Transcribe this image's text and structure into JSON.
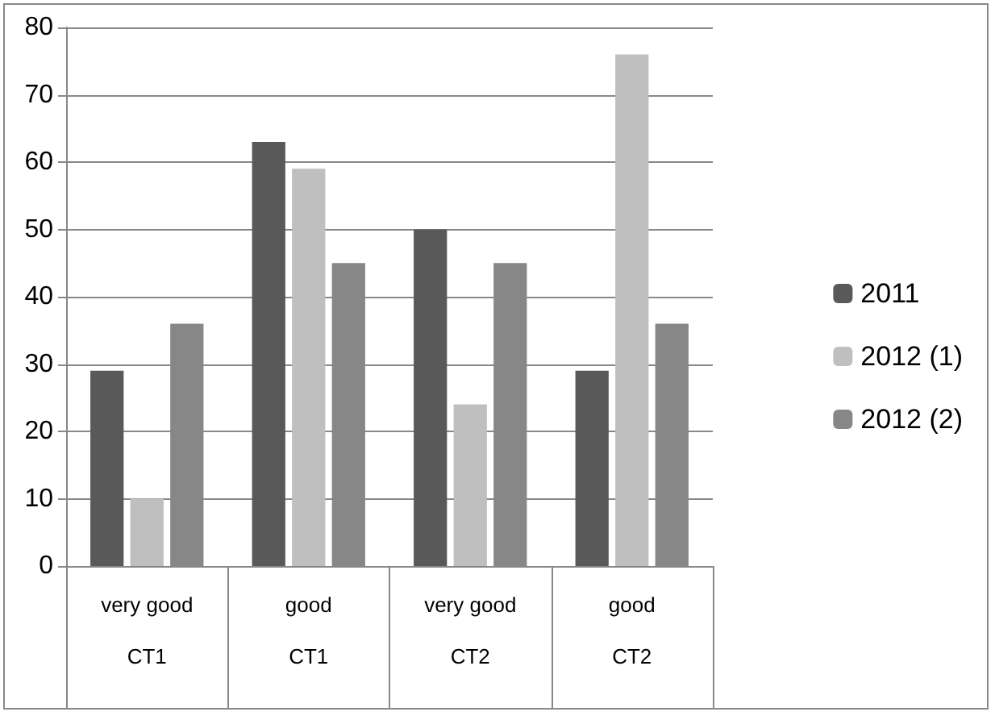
{
  "chart_data": {
    "type": "bar",
    "categories": [
      "very good\nCT1",
      "good\nCT1",
      "very good\nCT2",
      "good\nCT2"
    ],
    "series": [
      {
        "name": "2011",
        "color": "#595959",
        "values": [
          29,
          63,
          50,
          29
        ]
      },
      {
        "name": "2012 (1)",
        "color": "#bfbfbf",
        "values": [
          10,
          59,
          24,
          76
        ]
      },
      {
        "name": "2012 (2)",
        "color": "#878787",
        "values": [
          36,
          45,
          45,
          36
        ]
      }
    ],
    "ylim": [
      0,
      80
    ],
    "yticks": [
      0,
      10,
      20,
      30,
      40,
      50,
      60,
      70,
      80
    ],
    "grid": "y",
    "legend": "right"
  }
}
